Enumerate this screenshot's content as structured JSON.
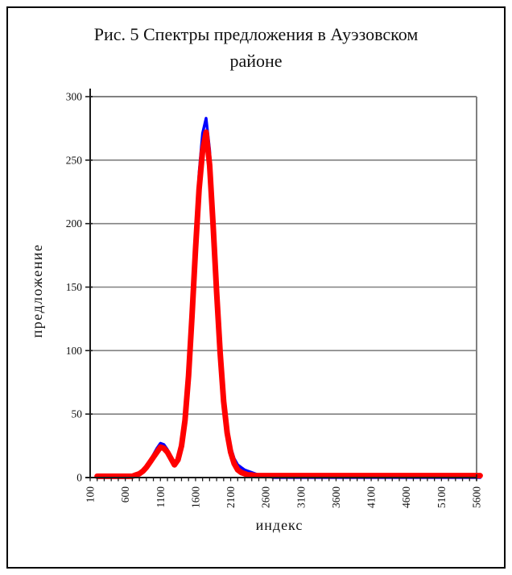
{
  "figure": {
    "background": "#ffffff",
    "border_color": "#000000"
  },
  "chart_data": {
    "type": "line",
    "title": "Рис. 5 Спектры предложения в Ауэзовском районе",
    "title_lines": [
      "Рис. 5 Спектры предложения в Ауэзовском",
      "районе"
    ],
    "xlabel": "индекс",
    "ylabel": "предложение",
    "grid": true,
    "legend": false,
    "colors": {
      "axis": "#1a1a1a",
      "gridline": "#808080",
      "plot_border": "#808080",
      "series_blue": "#0000ff",
      "series_red": "#ff0000"
    },
    "x_axis": {
      "min": 100,
      "max": 5700,
      "minor_tick_step": 100,
      "label_step": 500,
      "tick_labels": [
        "100",
        "600",
        "1100",
        "1600",
        "2100",
        "2600",
        "3100",
        "3600",
        "4100",
        "4600",
        "5100",
        "5600"
      ]
    },
    "y_axis": {
      "min": 0,
      "max": 300,
      "tick_step": 50,
      "tick_labels": [
        "0",
        "50",
        "100",
        "150",
        "200",
        "250",
        "300"
      ]
    },
    "series": [
      {
        "name": "supply-blue",
        "color": "#0000ff",
        "stroke_width": 3.5,
        "x_start": 200,
        "x_step": 50,
        "values": [
          0,
          0,
          0,
          0,
          0,
          0,
          0,
          0,
          0,
          0,
          1,
          2,
          4,
          6,
          9,
          13,
          18,
          23,
          27,
          26,
          22,
          16,
          11,
          15,
          27,
          48,
          85,
          135,
          190,
          240,
          271,
          283,
          258,
          210,
          155,
          105,
          66,
          40,
          24,
          15,
          10,
          8,
          6,
          5,
          4,
          3,
          2,
          2,
          1,
          1,
          0,
          0,
          0,
          0,
          0,
          0,
          0,
          0,
          0,
          0,
          0,
          0,
          0,
          0,
          0,
          0,
          0,
          0,
          0,
          0,
          0,
          0,
          0,
          0,
          0,
          0,
          0,
          0,
          0,
          0,
          0,
          0,
          0,
          0,
          0,
          0,
          0,
          0,
          0,
          0,
          0,
          0,
          0,
          0,
          0,
          0,
          0,
          0,
          0,
          0,
          0,
          0,
          0,
          0,
          0,
          0,
          0,
          0,
          0,
          0
        ]
      },
      {
        "name": "supply-red",
        "color": "#ff0000",
        "stroke_width": 7,
        "x_start": 200,
        "x_step": 50,
        "values": [
          1,
          1,
          1,
          1,
          1,
          1,
          1,
          1,
          1,
          1,
          1,
          2,
          3,
          5,
          8,
          12,
          16,
          20,
          24,
          23,
          20,
          15,
          10,
          14,
          25,
          45,
          80,
          127,
          180,
          227,
          257,
          272,
          246,
          199,
          146,
          98,
          60,
          35,
          20,
          11,
          6,
          4,
          3,
          2,
          2,
          1.5,
          1.5,
          1.5,
          1.5,
          1.5,
          1.5,
          1.5,
          1.5,
          1.5,
          1.5,
          1.5,
          1.5,
          1.5,
          1.5,
          1.5,
          1.5,
          1.5,
          1.5,
          1.5,
          1.5,
          1.5,
          1.5,
          1.5,
          1.5,
          1.5,
          1.5,
          1.5,
          1.5,
          1.5,
          1.5,
          1.5,
          1.5,
          1.5,
          1.5,
          1.5,
          1.5,
          1.5,
          1.5,
          1.5,
          1.5,
          1.5,
          1.5,
          1.5,
          1.5,
          1.5,
          1.5,
          1.5,
          1.5,
          1.5,
          1.5,
          1.5,
          1.5,
          1.5,
          1.5,
          1.5,
          1.5,
          1.5,
          1.5,
          1.5,
          1.5,
          1.5,
          1.5,
          1.5,
          1.5,
          1.5
        ]
      }
    ]
  }
}
